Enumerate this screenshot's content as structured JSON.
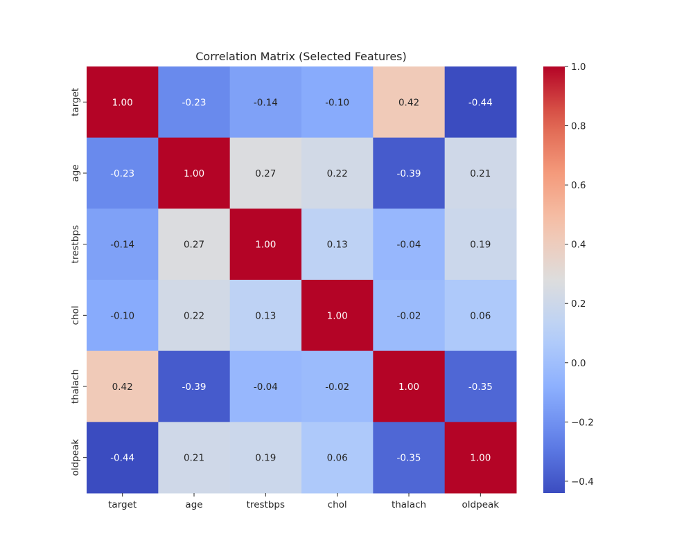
{
  "chart_data": {
    "type": "heatmap",
    "title": "Correlation Matrix (Selected Features)",
    "x_labels": [
      "target",
      "age",
      "trestbps",
      "chol",
      "thalach",
      "oldpeak"
    ],
    "y_labels": [
      "target",
      "age",
      "trestbps",
      "chol",
      "thalach",
      "oldpeak"
    ],
    "values": [
      [
        1.0,
        -0.23,
        -0.14,
        -0.1,
        0.42,
        -0.44
      ],
      [
        -0.23,
        1.0,
        0.27,
        0.22,
        -0.39,
        0.21
      ],
      [
        -0.14,
        0.27,
        1.0,
        0.13,
        -0.04,
        0.19
      ],
      [
        -0.1,
        0.22,
        0.13,
        1.0,
        -0.02,
        0.06
      ],
      [
        0.42,
        -0.39,
        -0.04,
        -0.02,
        1.0,
        -0.35
      ],
      [
        -0.44,
        0.21,
        0.19,
        0.06,
        -0.35,
        1.0
      ]
    ],
    "colormap": "coolwarm",
    "value_range": [
      -0.44,
      1.0
    ],
    "colorbar_ticks": [
      -0.4,
      -0.2,
      0.0,
      0.2,
      0.4,
      0.6,
      0.8,
      1.0
    ],
    "colorbar_tick_labels": [
      "−0.4",
      "−0.2",
      "0.0",
      "0.2",
      "0.4",
      "0.6",
      "0.8",
      "1.0"
    ],
    "annotation_format": "2 decimals"
  }
}
